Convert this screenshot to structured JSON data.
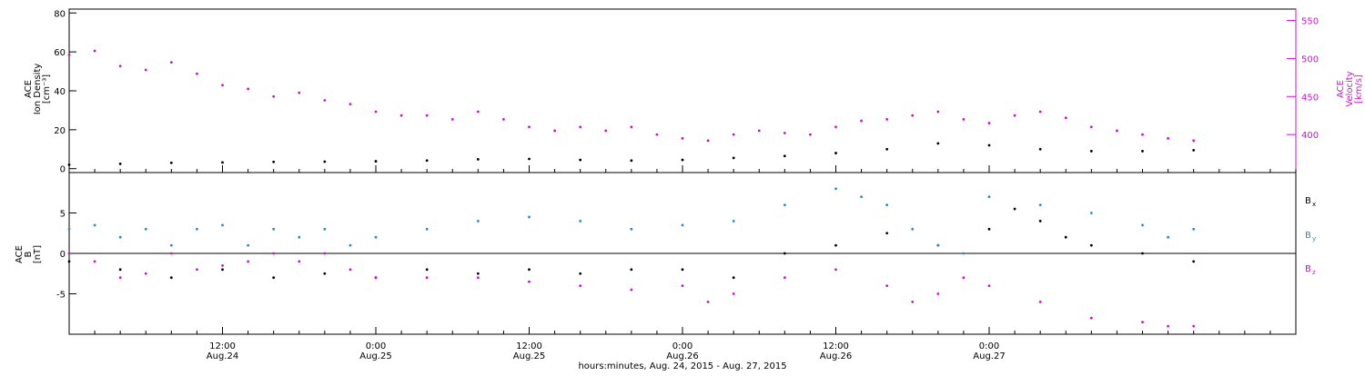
{
  "chart_data": [
    {
      "type": "scatter",
      "panel": "top",
      "ylabel_left": [
        "ACE",
        "Ion Density",
        "[cm⁻³]"
      ],
      "ylabel_right": [
        "ACE",
        "Velocity",
        "[km/s]"
      ],
      "ylim_left": [
        -2,
        82
      ],
      "ylim_right": [
        350,
        565
      ],
      "yticks_left": [
        0,
        20,
        40,
        60,
        80
      ],
      "yticks_right": [
        400,
        450,
        500,
        550
      ],
      "colors": {
        "density": "#000000",
        "velocity": "#d010d0"
      },
      "series": [
        {
          "axis": "left",
          "color_key": "density",
          "points": [
            [
              0,
              2
            ],
            [
              4,
              2.5
            ],
            [
              8,
              3
            ],
            [
              12,
              3.2
            ],
            [
              16,
              3.5
            ],
            [
              20,
              3.6
            ],
            [
              24,
              3.8
            ],
            [
              28,
              4.2
            ],
            [
              32,
              4.8
            ],
            [
              36,
              5
            ],
            [
              40,
              4.5
            ],
            [
              44,
              4.2
            ],
            [
              48,
              4.5
            ],
            [
              52,
              5.5
            ],
            [
              56,
              6.5
            ],
            [
              60,
              8
            ],
            [
              64,
              10
            ],
            [
              68,
              13
            ],
            [
              72,
              12
            ],
            [
              76,
              10
            ],
            [
              80,
              9
            ],
            [
              84,
              9
            ],
            [
              88,
              9.5
            ]
          ]
        },
        {
          "axis": "right",
          "color_key": "velocity",
          "points": [
            [
              0,
              505
            ],
            [
              2,
              510
            ],
            [
              4,
              490
            ],
            [
              6,
              485
            ],
            [
              8,
              495
            ],
            [
              10,
              480
            ],
            [
              12,
              465
            ],
            [
              14,
              460
            ],
            [
              16,
              450
            ],
            [
              18,
              455
            ],
            [
              20,
              445
            ],
            [
              22,
              440
            ],
            [
              24,
              430
            ],
            [
              26,
              425
            ],
            [
              28,
              425
            ],
            [
              30,
              420
            ],
            [
              32,
              430
            ],
            [
              34,
              420
            ],
            [
              36,
              410
            ],
            [
              38,
              405
            ],
            [
              40,
              410
            ],
            [
              42,
              405
            ],
            [
              44,
              410
            ],
            [
              46,
              400
            ],
            [
              48,
              395
            ],
            [
              50,
              392
            ],
            [
              52,
              400
            ],
            [
              54,
              405
            ],
            [
              56,
              402
            ],
            [
              58,
              400
            ],
            [
              60,
              410
            ],
            [
              62,
              418
            ],
            [
              64,
              420
            ],
            [
              66,
              425
            ],
            [
              68,
              430
            ],
            [
              70,
              420
            ],
            [
              72,
              415
            ],
            [
              74,
              425
            ],
            [
              76,
              430
            ],
            [
              78,
              422
            ],
            [
              80,
              410
            ],
            [
              82,
              405
            ],
            [
              84,
              400
            ],
            [
              86,
              395
            ],
            [
              88,
              392
            ]
          ]
        }
      ]
    },
    {
      "type": "scatter",
      "panel": "bottom",
      "ylabel_left": [
        "ACE",
        "B",
        "[nT]"
      ],
      "ylim": [
        -10,
        10
      ],
      "yticks": [
        -5,
        0,
        5
      ],
      "legend": [
        {
          "label": "B",
          "sub": "x",
          "color_key": "bx"
        },
        {
          "label": "B",
          "sub": "y",
          "color_key": "by"
        },
        {
          "label": "B",
          "sub": "z",
          "color_key": "bz"
        }
      ],
      "colors": {
        "bx": "#000000",
        "by": "#1f8ad8",
        "bz": "#d010d0"
      },
      "series": [
        {
          "color_key": "bx",
          "points": [
            [
              0,
              -1
            ],
            [
              4,
              -2
            ],
            [
              8,
              -3
            ],
            [
              12,
              -2
            ],
            [
              16,
              -3
            ],
            [
              20,
              -2.5
            ],
            [
              24,
              -3
            ],
            [
              28,
              -2
            ],
            [
              32,
              -2.5
            ],
            [
              36,
              -2
            ],
            [
              40,
              -2.5
            ],
            [
              44,
              -2
            ],
            [
              48,
              -2
            ],
            [
              52,
              -3
            ],
            [
              56,
              0
            ],
            [
              60,
              1
            ],
            [
              64,
              2.5
            ],
            [
              68,
              1
            ],
            [
              72,
              3
            ],
            [
              74,
              5.5
            ],
            [
              76,
              4
            ],
            [
              78,
              2
            ],
            [
              80,
              1
            ],
            [
              84,
              0
            ],
            [
              88,
              -1
            ]
          ]
        },
        {
          "color_key": "by",
          "points": [
            [
              0,
              3
            ],
            [
              2,
              3.5
            ],
            [
              4,
              2
            ],
            [
              6,
              3
            ],
            [
              8,
              1
            ],
            [
              10,
              3
            ],
            [
              12,
              3.5
            ],
            [
              14,
              1
            ],
            [
              16,
              3
            ],
            [
              18,
              2
            ],
            [
              20,
              3
            ],
            [
              22,
              1
            ],
            [
              24,
              2
            ],
            [
              28,
              3
            ],
            [
              32,
              4
            ],
            [
              36,
              4.5
            ],
            [
              40,
              4
            ],
            [
              44,
              3
            ],
            [
              48,
              3.5
            ],
            [
              52,
              4
            ],
            [
              56,
              6
            ],
            [
              60,
              8
            ],
            [
              62,
              7
            ],
            [
              64,
              6
            ],
            [
              66,
              3
            ],
            [
              68,
              1
            ],
            [
              70,
              0
            ],
            [
              72,
              7
            ],
            [
              76,
              6
            ],
            [
              80,
              5
            ],
            [
              84,
              3.5
            ],
            [
              86,
              2
            ],
            [
              88,
              3
            ]
          ]
        },
        {
          "color_key": "bz",
          "points": [
            [
              0,
              0
            ],
            [
              2,
              -1
            ],
            [
              4,
              -3
            ],
            [
              6,
              -2.5
            ],
            [
              8,
              0
            ],
            [
              10,
              -2
            ],
            [
              12,
              -1.5
            ],
            [
              14,
              -1
            ],
            [
              16,
              0
            ],
            [
              18,
              -1
            ],
            [
              20,
              0
            ],
            [
              22,
              -2
            ],
            [
              24,
              -3
            ],
            [
              28,
              -3
            ],
            [
              32,
              -3
            ],
            [
              36,
              -3.5
            ],
            [
              40,
              -4
            ],
            [
              44,
              -4.5
            ],
            [
              48,
              -4
            ],
            [
              50,
              -6
            ],
            [
              52,
              -5
            ],
            [
              56,
              -3
            ],
            [
              60,
              -2
            ],
            [
              64,
              -4
            ],
            [
              66,
              -6
            ],
            [
              68,
              -5
            ],
            [
              70,
              -3
            ],
            [
              72,
              -4
            ],
            [
              76,
              -6
            ],
            [
              80,
              -8
            ],
            [
              84,
              -8.5
            ],
            [
              86,
              -9
            ],
            [
              88,
              -9
            ]
          ]
        }
      ]
    }
  ],
  "x_axis": {
    "xlim": [
      0,
      96
    ],
    "ticks": [
      {
        "x": 12,
        "time": "12:00",
        "date": "Aug.24"
      },
      {
        "x": 24,
        "time": "0:00",
        "date": "Aug.25"
      },
      {
        "x": 36,
        "time": "12:00",
        "date": "Aug.25"
      },
      {
        "x": 48,
        "time": "0:00",
        "date": "Aug.26"
      },
      {
        "x": 60,
        "time": "12:00",
        "date": "Aug.26"
      },
      {
        "x": 72,
        "time": "0:00",
        "date": "Aug.27"
      }
    ],
    "xlabel": "hours:minutes, Aug. 24, 2015 - Aug. 27, 2015"
  }
}
